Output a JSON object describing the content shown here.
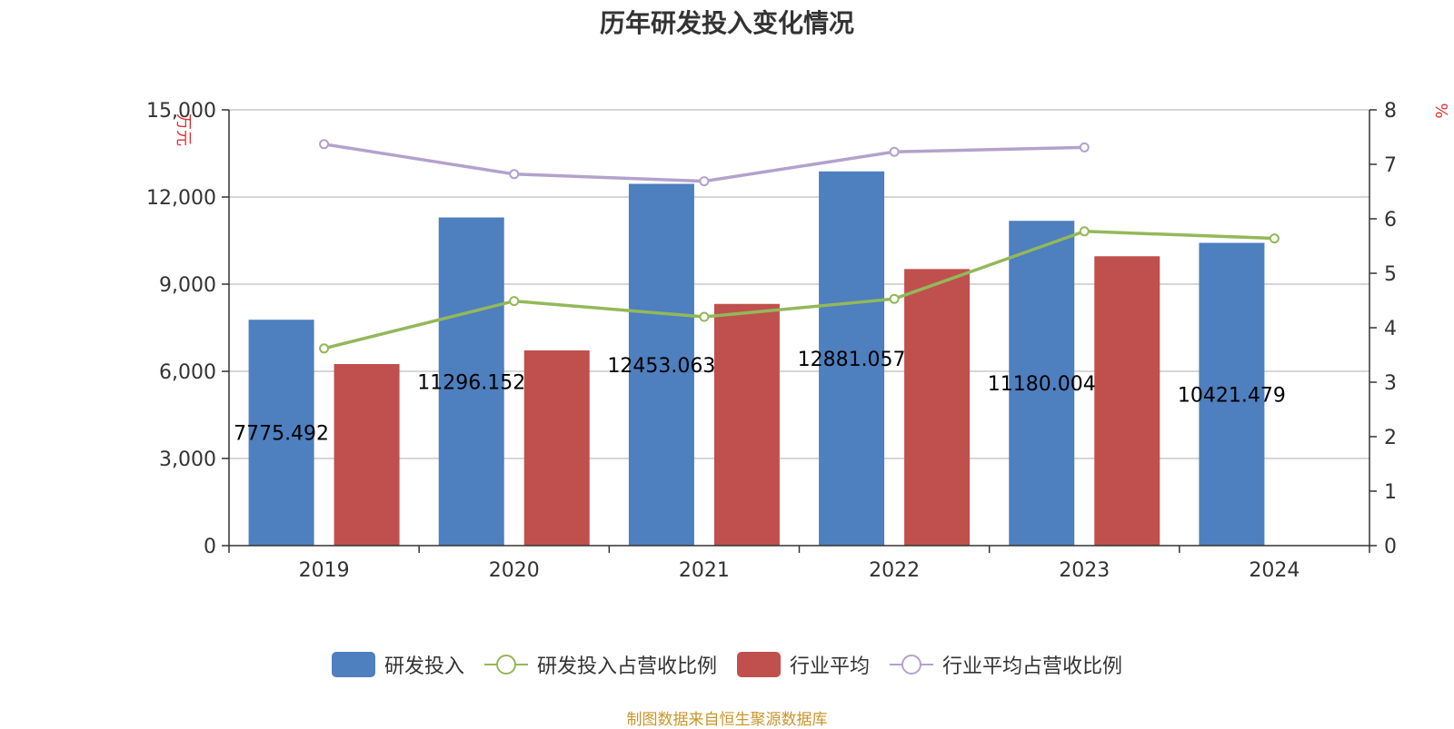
{
  "chart_data": {
    "type": "bar",
    "title": "历年研发投入变化情况",
    "categories": [
      "2019",
      "2020",
      "2021",
      "2022",
      "2023",
      "2024"
    ],
    "y_left": {
      "label": "万元",
      "lim": [
        0,
        15000
      ],
      "ticks": [
        "0",
        "3,000",
        "6,000",
        "9,000",
        "12,000",
        "15,000"
      ],
      "tick_values": [
        0,
        3000,
        6000,
        9000,
        12000,
        15000
      ]
    },
    "y_right": {
      "label": "%",
      "lim": [
        0,
        8
      ],
      "ticks": [
        "0",
        "1",
        "2",
        "3",
        "4",
        "5",
        "6",
        "7",
        "8"
      ],
      "tick_values": [
        0,
        1,
        2,
        3,
        4,
        5,
        6,
        7,
        8
      ]
    },
    "grid": true,
    "legend_position": "bottom",
    "series": [
      {
        "name": "研发投入",
        "kind": "bar",
        "axis": "left",
        "color": "#4e7fbf",
        "values": [
          7775.492,
          11296.152,
          12453.063,
          12881.057,
          11180.004,
          10421.479
        ],
        "data_labels": [
          "7775.492",
          "11296.152",
          "12453.063",
          "12881.057",
          "11180.004",
          "10421.479"
        ]
      },
      {
        "name": "研发投入占营收比例",
        "kind": "line",
        "axis": "right",
        "color": "#93b85a",
        "values": [
          3.62,
          4.49,
          4.2,
          4.53,
          5.77,
          5.64
        ]
      },
      {
        "name": "行业平均",
        "kind": "bar",
        "axis": "left",
        "color": "#c0504d",
        "values": [
          6250,
          6720,
          8320,
          9520,
          9960,
          null
        ]
      },
      {
        "name": "行业平均占营收比例",
        "kind": "line",
        "axis": "right",
        "color": "#b3a2cc",
        "values": [
          7.37,
          6.82,
          6.69,
          7.23,
          7.31,
          null
        ]
      }
    ]
  },
  "source_note": "制图数据来自恒生聚源数据库"
}
